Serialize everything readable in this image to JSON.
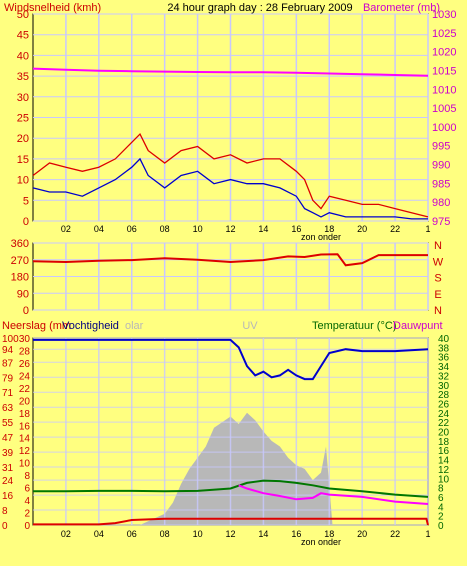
{
  "chart_data": [
    {
      "type": "line",
      "title": "24 hour graph day : 28 February 2009",
      "ylabel_left": "Windsnelheid (kmh)",
      "ylabel_right": "Barometer (mb)",
      "xlabel": "zon onder",
      "x_ticks": [
        "02",
        "04",
        "06",
        "08",
        "10",
        "12",
        "14",
        "16",
        "18",
        "20",
        "22",
        "1"
      ],
      "xlim": [
        0,
        24
      ],
      "ylim_left": [
        0,
        50
      ],
      "y_ticks_left": [
        "0",
        "5",
        "10",
        "15",
        "20",
        "25",
        "30",
        "35",
        "40",
        "45",
        "50"
      ],
      "ylim_right": [
        975,
        1030
      ],
      "y_ticks_right": [
        "975",
        "980",
        "985",
        "990",
        "995",
        "1000",
        "1005",
        "1010",
        "1015",
        "1020",
        "1025",
        "1030"
      ],
      "grid": true,
      "colors": {
        "gust": "#DD0000",
        "wind": "#0000CC",
        "barometer": "#FF00FF",
        "right_axis": "#CC00CC",
        "left_axis": "#CC0000"
      },
      "series": [
        {
          "axis": "left",
          "color": "gust",
          "x": [
            0,
            1,
            2,
            3,
            4,
            5,
            6,
            6.5,
            7,
            8,
            9,
            10,
            11,
            12,
            13,
            14,
            15,
            16,
            16.5,
            17,
            17.5,
            18,
            19,
            20,
            21,
            22,
            23,
            24
          ],
          "values": [
            11,
            14,
            13,
            12,
            13,
            15,
            19,
            21,
            17,
            14,
            17,
            18,
            15,
            16,
            14,
            15,
            15,
            12,
            10,
            5,
            3,
            6,
            5,
            4,
            4,
            3,
            2,
            1
          ]
        },
        {
          "axis": "left",
          "color": "wind",
          "x": [
            0,
            1,
            2,
            3,
            4,
            5,
            6,
            6.5,
            7,
            8,
            9,
            10,
            11,
            12,
            13,
            14,
            15,
            16,
            16.5,
            17,
            17.5,
            18,
            19,
            20,
            21,
            22,
            23,
            24
          ],
          "values": [
            8,
            7,
            7,
            6,
            8,
            10,
            13,
            15,
            11,
            8,
            11,
            12,
            9,
            10,
            9,
            9,
            8,
            6,
            3,
            2,
            1,
            2,
            1,
            1,
            1,
            1,
            0.5,
            0.5
          ]
        },
        {
          "axis": "right",
          "color": "barometer",
          "x": [
            0,
            2,
            4,
            6,
            8,
            10,
            12,
            14,
            16,
            18,
            20,
            22,
            24
          ],
          "values": [
            1015.5,
            1015.2,
            1014.9,
            1014.8,
            1014.7,
            1014.6,
            1014.5,
            1014.5,
            1014.4,
            1014.2,
            1014.0,
            1013.8,
            1013.6
          ]
        }
      ]
    },
    {
      "type": "line",
      "ylabel_right_letters": [
        "N",
        "W",
        "S",
        "E",
        "N"
      ],
      "x_ticks": [
        "02",
        "04",
        "06",
        "08",
        "10",
        "12",
        "14",
        "16",
        "18",
        "20",
        "22",
        "1"
      ],
      "xlim": [
        0,
        24
      ],
      "ylim": [
        0,
        360
      ],
      "y_ticks": [
        "0",
        "90",
        "180",
        "270",
        "360"
      ],
      "grid": true,
      "colors": {
        "direction": "#DD0000",
        "left_axis": "#CC0000"
      },
      "series": [
        {
          "color": "direction",
          "x": [
            0,
            2,
            4,
            6,
            8,
            10,
            12,
            14,
            15.5,
            16.5,
            17.5,
            18.5,
            19,
            20,
            21,
            24
          ],
          "values": [
            262,
            258,
            265,
            268,
            278,
            270,
            258,
            268,
            288,
            285,
            298,
            300,
            240,
            252,
            295,
            295
          ]
        }
      ]
    },
    {
      "type": "line",
      "ylabel_left": "Neerslag (mm",
      "ylabel_left2": "Vochtigheid",
      "ylabel_left3": "olar",
      "ylabel_center": "UV",
      "ylabel_right": "Temperatuur (°C)",
      "ylabel_right2": "Dauwpunt",
      "xlabel": "zon onder",
      "x_ticks": [
        "02",
        "04",
        "06",
        "08",
        "10",
        "12",
        "14",
        "16",
        "18",
        "20",
        "22",
        "1"
      ],
      "xlim": [
        0,
        24
      ],
      "ylim_left": [
        0,
        100
      ],
      "y_ticks_left": [
        "0",
        "8",
        "16",
        "24",
        "31",
        "39",
        "47",
        "55",
        "63",
        "71",
        "79",
        "87",
        "94",
        "100"
      ],
      "ylim_left_mm": [
        0,
        30
      ],
      "y_ticks_left_mm": [
        "0",
        "2",
        "4",
        "6",
        "8",
        "10",
        "12",
        "14",
        "16",
        "18",
        "20",
        "22",
        "24",
        "26",
        "28",
        "30"
      ],
      "ylim_right": [
        0,
        40
      ],
      "y_ticks_right": [
        "0",
        "2",
        "4",
        "6",
        "8",
        "10",
        "12",
        "14",
        "16",
        "18",
        "20",
        "22",
        "24",
        "26",
        "28",
        "30",
        "32",
        "34",
        "36",
        "38",
        "40"
      ],
      "grid": true,
      "colors": {
        "humidity": "#0000CC",
        "temperature": "#007700",
        "dewpoint": "#FF00FF",
        "rain": "#DD0000",
        "solar": "#B8B8B8",
        "right_axis": "#006600",
        "left_axis": "#CC0000"
      },
      "solar": {
        "color": "solar",
        "x": [
          6.5,
          7,
          7.5,
          8,
          8.5,
          9,
          9.5,
          10,
          10.5,
          11,
          11.5,
          12,
          12.5,
          13,
          13.5,
          14,
          14.5,
          15,
          15.5,
          16,
          16.5,
          17,
          17.5,
          17.8,
          18.2
        ],
        "values": [
          0,
          2,
          4,
          6,
          12,
          22,
          30,
          36,
          42,
          52,
          55,
          58,
          54,
          60,
          56,
          50,
          45,
          42,
          36,
          32,
          30,
          24,
          28,
          42,
          0
        ]
      },
      "series": [
        {
          "axis": "left",
          "color": "humidity",
          "x": [
            0,
            2,
            4,
            6,
            8,
            10,
            12,
            12.5,
            13,
            13.5,
            14,
            14.5,
            15,
            15.5,
            16,
            16.5,
            17,
            17.5,
            18,
            19,
            20,
            22,
            24
          ],
          "values": [
            99,
            99,
            99,
            99,
            99,
            99,
            99,
            95,
            85,
            80,
            82,
            79,
            80,
            83,
            80,
            78,
            78,
            85,
            92,
            94,
            93,
            93,
            94
          ]
        },
        {
          "axis": "right",
          "color": "temperature",
          "x": [
            0,
            2,
            4,
            6,
            8,
            10,
            12,
            13,
            14,
            15,
            16,
            17,
            18,
            20,
            22,
            24
          ],
          "values": [
            7.2,
            7.2,
            7.3,
            7.3,
            7.2,
            7.3,
            7.8,
            9.0,
            9.5,
            9.4,
            9.0,
            8.5,
            7.8,
            7.2,
            6.5,
            6.0
          ]
        },
        {
          "axis": "right",
          "color": "dewpoint",
          "x": [
            12.5,
            13,
            14,
            15,
            16,
            17,
            17.5,
            18,
            20,
            22,
            24
          ],
          "values": [
            8.5,
            7.8,
            6.8,
            6.2,
            5.5,
            5.8,
            6.8,
            6.5,
            6.0,
            5.0,
            4.5
          ]
        },
        {
          "axis": "left_mm",
          "color": "rain",
          "x": [
            0,
            4,
            5,
            6,
            8,
            10,
            12,
            14,
            16,
            18,
            20,
            22,
            23.9,
            24
          ],
          "values": [
            0.1,
            0.1,
            0.3,
            0.8,
            1.0,
            1.0,
            1.0,
            1.0,
            1.0,
            1.0,
            1.0,
            1.0,
            1.0,
            0
          ]
        }
      ]
    }
  ]
}
